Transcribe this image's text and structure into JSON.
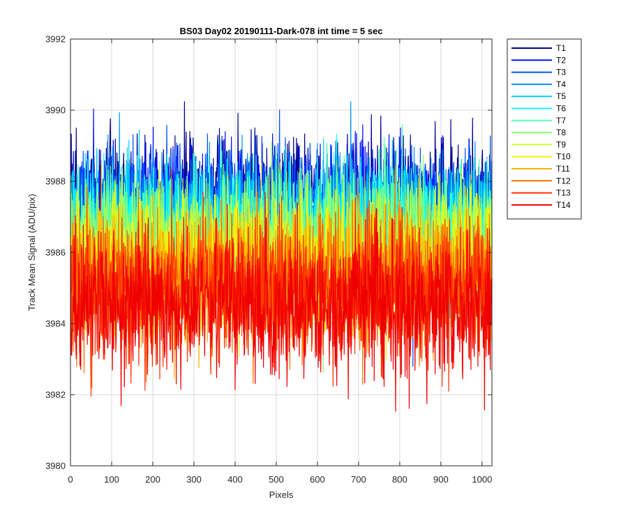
{
  "chart_data": {
    "type": "line",
    "title": "BS03 Day02 20190111-Dark-078 int time = 5 sec",
    "xlabel": "Pixels",
    "ylabel": "Track Mean Signal (ADU/pix)",
    "xlim": [
      0,
      1024
    ],
    "ylim": [
      3980,
      3992
    ],
    "xticks": [
      0,
      100,
      200,
      300,
      400,
      500,
      600,
      700,
      800,
      900,
      1000
    ],
    "yticks": [
      3980,
      3982,
      3984,
      3986,
      3988,
      3990,
      3992
    ],
    "grid": true,
    "legend_position": "outside-top-right",
    "n_points": 1024,
    "series": [
      {
        "name": "T1",
        "color": "#00008f",
        "mean": 3987.55,
        "noise": 0.85
      },
      {
        "name": "T2",
        "color": "#0010ff",
        "mean": 3987.35,
        "noise": 0.85
      },
      {
        "name": "T3",
        "color": "#0050ff",
        "mean": 3987.15,
        "noise": 0.85
      },
      {
        "name": "T4",
        "color": "#0090ff",
        "mean": 3987.0,
        "noise": 0.85
      },
      {
        "name": "T5",
        "color": "#00d0ff",
        "mean": 3986.85,
        "noise": 0.85
      },
      {
        "name": "T6",
        "color": "#10ffef",
        "mean": 3986.7,
        "noise": 0.85
      },
      {
        "name": "T7",
        "color": "#50ffaf",
        "mean": 3986.5,
        "noise": 0.85
      },
      {
        "name": "T8",
        "color": "#90ff6f",
        "mean": 3986.25,
        "noise": 0.9
      },
      {
        "name": "T9",
        "color": "#d0ff2f",
        "mean": 3986.0,
        "noise": 0.9
      },
      {
        "name": "T10",
        "color": "#ffef00",
        "mean": 3985.7,
        "noise": 0.9
      },
      {
        "name": "T11",
        "color": "#ffaf00",
        "mean": 3985.4,
        "noise": 0.95
      },
      {
        "name": "T12",
        "color": "#ff6f00",
        "mean": 3985.1,
        "noise": 0.95
      },
      {
        "name": "T13",
        "color": "#ff3000",
        "mean": 3984.9,
        "noise": 0.95
      },
      {
        "name": "T14",
        "color": "#ef0000",
        "mean": 3984.6,
        "noise": 1.0
      }
    ]
  }
}
